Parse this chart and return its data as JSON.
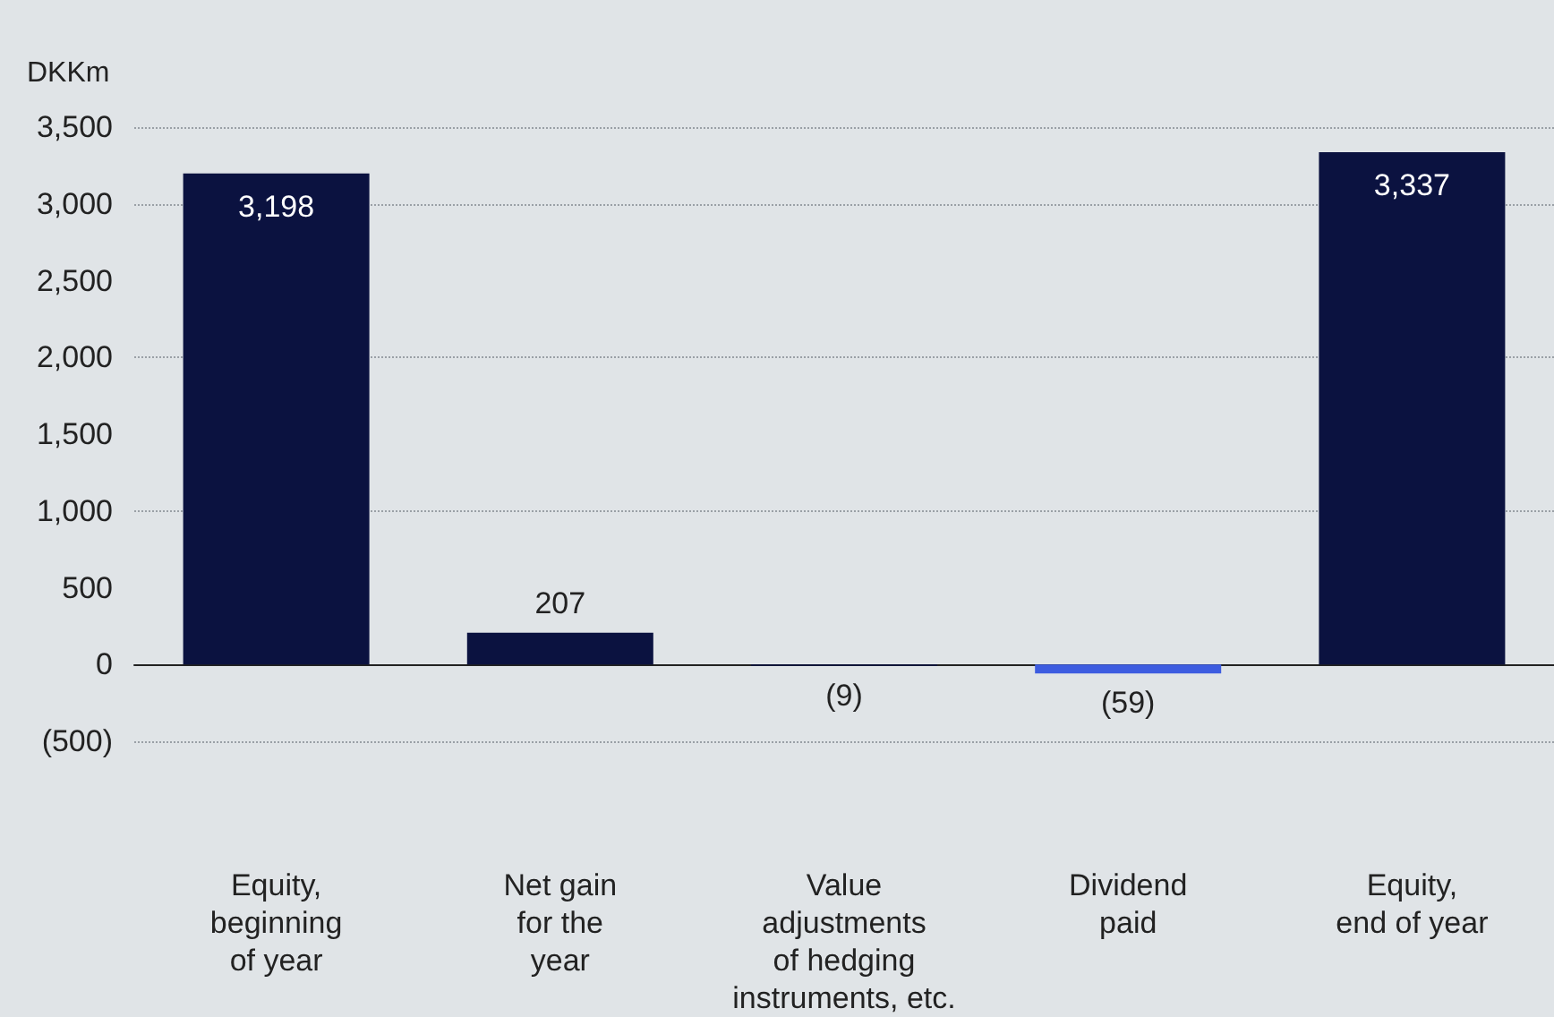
{
  "chart_data": {
    "type": "bar",
    "ylabel": "DKKm",
    "categories": [
      "Equity,\nbeginning\nof year",
      "Net gain\nfor the\nyear",
      "Value\nadjustments\nof hedging\ninstruments, etc.",
      "Dividend\npaid",
      "Equity,\nend of year"
    ],
    "values": [
      3198,
      207,
      -9,
      -59,
      3337
    ],
    "colors": [
      "#0b1240",
      "#0b1240",
      "#0b1240",
      "#3d5ce0",
      "#0b1240"
    ],
    "value_labels": [
      "3,198",
      "207",
      "(9)",
      "(59)",
      "3,337"
    ],
    "ylim": [
      -500,
      3500
    ],
    "yticks": [
      {
        "value": -500,
        "label": "(500)"
      },
      0,
      500,
      {
        "value": 1000,
        "label": "1,000"
      },
      {
        "value": 1500,
        "label": "1,500"
      },
      {
        "value": 2000,
        "label": "2,000"
      },
      {
        "value": 2500,
        "label": "2,500"
      },
      {
        "value": 3000,
        "label": "3,000"
      },
      {
        "value": 3500,
        "label": "3,500"
      }
    ],
    "grid": "y"
  }
}
